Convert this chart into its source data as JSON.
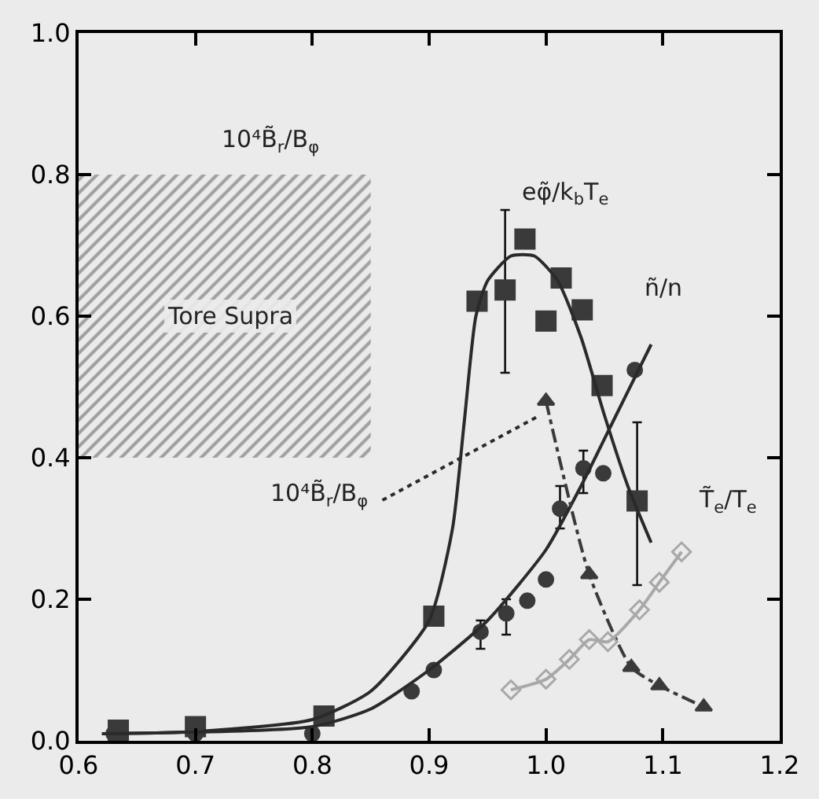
{
  "chart_data": {
    "type": "scatter",
    "xlim": [
      0.6,
      1.2
    ],
    "ylim": [
      0.0,
      1.0
    ],
    "xticks": [
      {
        "value": 0.6,
        "label": "0.6"
      },
      {
        "value": 0.7,
        "label": "0.7"
      },
      {
        "value": 0.8,
        "label": "0.8"
      },
      {
        "value": 0.9,
        "label": "0.9"
      },
      {
        "value": 1.0,
        "label": "1.0"
      },
      {
        "value": 1.1,
        "label": "1.1"
      },
      {
        "value": 1.2,
        "label": "1.2"
      }
    ],
    "yticks": [
      {
        "value": 0.0,
        "label": "0.0"
      },
      {
        "value": 0.2,
        "label": "0.2"
      },
      {
        "value": 0.4,
        "label": "0.4"
      },
      {
        "value": 0.6,
        "label": "0.6"
      },
      {
        "value": 0.8,
        "label": "0.8"
      },
      {
        "value": 1.0,
        "label": "1.0"
      }
    ],
    "grid": false,
    "series": [
      {
        "type": "bar",
        "color": "#555555",
        "x": [
          0.725
        ],
        "values": [
          0.4
        ],
        "base": [
          0.4
        ]
      },
      {
        "marker": "square",
        "color": "#3a3a3a",
        "x": [
          0.634,
          0.7,
          0.81,
          0.904,
          0.941,
          0.965,
          0.982,
          1.0,
          1.013,
          1.031,
          1.048,
          1.078
        ],
        "values": [
          0.015,
          0.02,
          0.035,
          0.176,
          0.621,
          0.637,
          0.709,
          0.593,
          0.654,
          0.609,
          0.502,
          0.339
        ],
        "errors": [
          null,
          null,
          null,
          null,
          null,
          [
            0.52,
            0.75
          ],
          null,
          null,
          null,
          null,
          null,
          [
            0.22,
            0.45
          ]
        ]
      },
      {
        "type": "line",
        "marker": "none",
        "color": "#2a2a2a",
        "x": [
          0.62,
          0.7,
          0.8,
          0.85,
          0.9,
          0.92,
          0.93,
          0.94,
          0.95,
          0.97,
          0.99,
          1.01,
          1.03,
          1.05,
          1.07,
          1.09
        ],
        "values": [
          0.01,
          0.013,
          0.03,
          0.07,
          0.17,
          0.3,
          0.45,
          0.6,
          0.65,
          0.685,
          0.685,
          0.65,
          0.57,
          0.46,
          0.36,
          0.28
        ]
      },
      {
        "marker": "circle",
        "color": "#3a3a3a",
        "x": [
          0.63,
          0.7,
          0.8,
          0.885,
          0.904,
          0.944,
          0.966,
          0.984,
          1.0,
          1.012,
          1.032,
          1.049,
          1.076
        ],
        "values": [
          0.01,
          0.01,
          0.01,
          0.07,
          0.1,
          0.154,
          0.18,
          0.198,
          0.228,
          0.328,
          0.385,
          0.378,
          0.524
        ],
        "errors": [
          null,
          null,
          null,
          null,
          null,
          [
            0.13,
            0.17
          ],
          [
            0.15,
            0.2
          ],
          null,
          null,
          [
            0.3,
            0.36
          ],
          [
            0.35,
            0.41
          ],
          null,
          null
        ]
      },
      {
        "type": "line",
        "marker": "none",
        "color": "#2a2a2a",
        "x": [
          0.62,
          0.8,
          0.85,
          0.9,
          0.95,
          1.0,
          1.03,
          1.06,
          1.09
        ],
        "values": [
          0.01,
          0.02,
          0.045,
          0.1,
          0.17,
          0.27,
          0.36,
          0.46,
          0.56
        ]
      },
      {
        "type": "line",
        "marker": "triangle",
        "line_style": "dashed",
        "color": "#3a3a3a",
        "x": [
          1.0,
          1.037,
          1.073,
          1.097,
          1.135
        ],
        "values": [
          0.48,
          0.235,
          0.104,
          0.078,
          0.048
        ]
      },
      {
        "type": "line",
        "marker": "none",
        "line_style": "dotted",
        "color": "#2a2a2a",
        "x": [
          0.86,
          0.995
        ],
        "values": [
          0.34,
          0.46
        ]
      },
      {
        "type": "line",
        "marker": "diamond",
        "color": "#a8a8a8",
        "x": [
          0.97,
          1.0,
          1.02,
          1.037,
          1.053,
          1.08,
          1.097,
          1.116
        ],
        "values": [
          0.072,
          0.087,
          0.115,
          0.143,
          0.14,
          0.185,
          0.224,
          0.267
        ]
      }
    ],
    "annotations": [
      "10⁴B̃$_{r}$/B$_{φ}$",
      "Tore Supra",
      "eφ̃/k$_{b}$T$_{e}$",
      "10⁴B̃$_{r}$/B$_{φ}$",
      {
        "text": "ñ/n",
        "x": 1.1,
        "y": 0.64
      },
      {
        "text": "T̃$_{e}$/T$_{e}$",
        "x": 1.155,
        "y": 0.34
      }
    ]
  }
}
